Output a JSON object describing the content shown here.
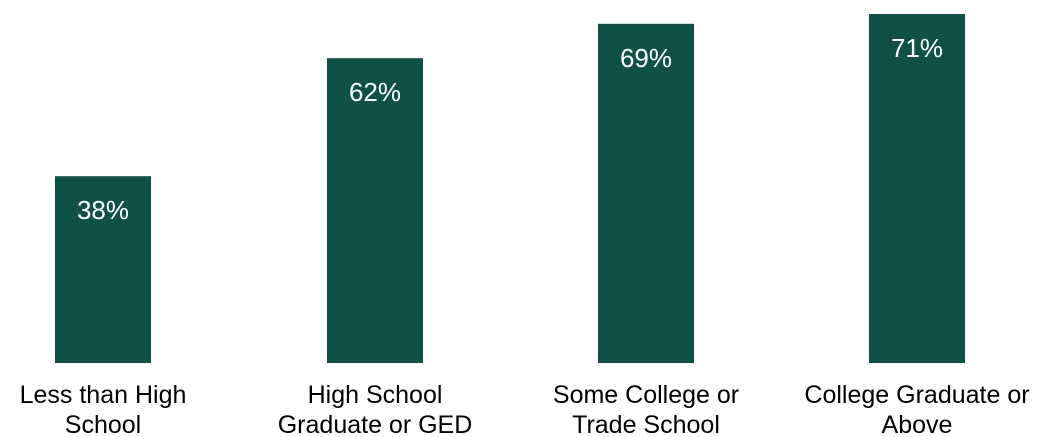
{
  "chart_data": {
    "type": "bar",
    "title": "",
    "xlabel": "",
    "ylabel": "",
    "categories": [
      "Less than High School",
      "High School Graduate or GED",
      "Some College or Trade School",
      "College Graduate or Above"
    ],
    "category_lines": [
      [
        "Less than High",
        "School"
      ],
      [
        "High School",
        "Graduate or GED"
      ],
      [
        "Some College or",
        "Trade School"
      ],
      [
        "College Graduate or",
        "Above"
      ]
    ],
    "values": [
      38,
      62,
      69,
      71
    ],
    "value_labels": [
      "38%",
      "62%",
      "69%",
      "71%"
    ],
    "unit": "%",
    "ylim": [
      0,
      71
    ],
    "grid": false,
    "legend": "none",
    "bar_color": "#0f5245",
    "label_color": "#ffffff"
  }
}
